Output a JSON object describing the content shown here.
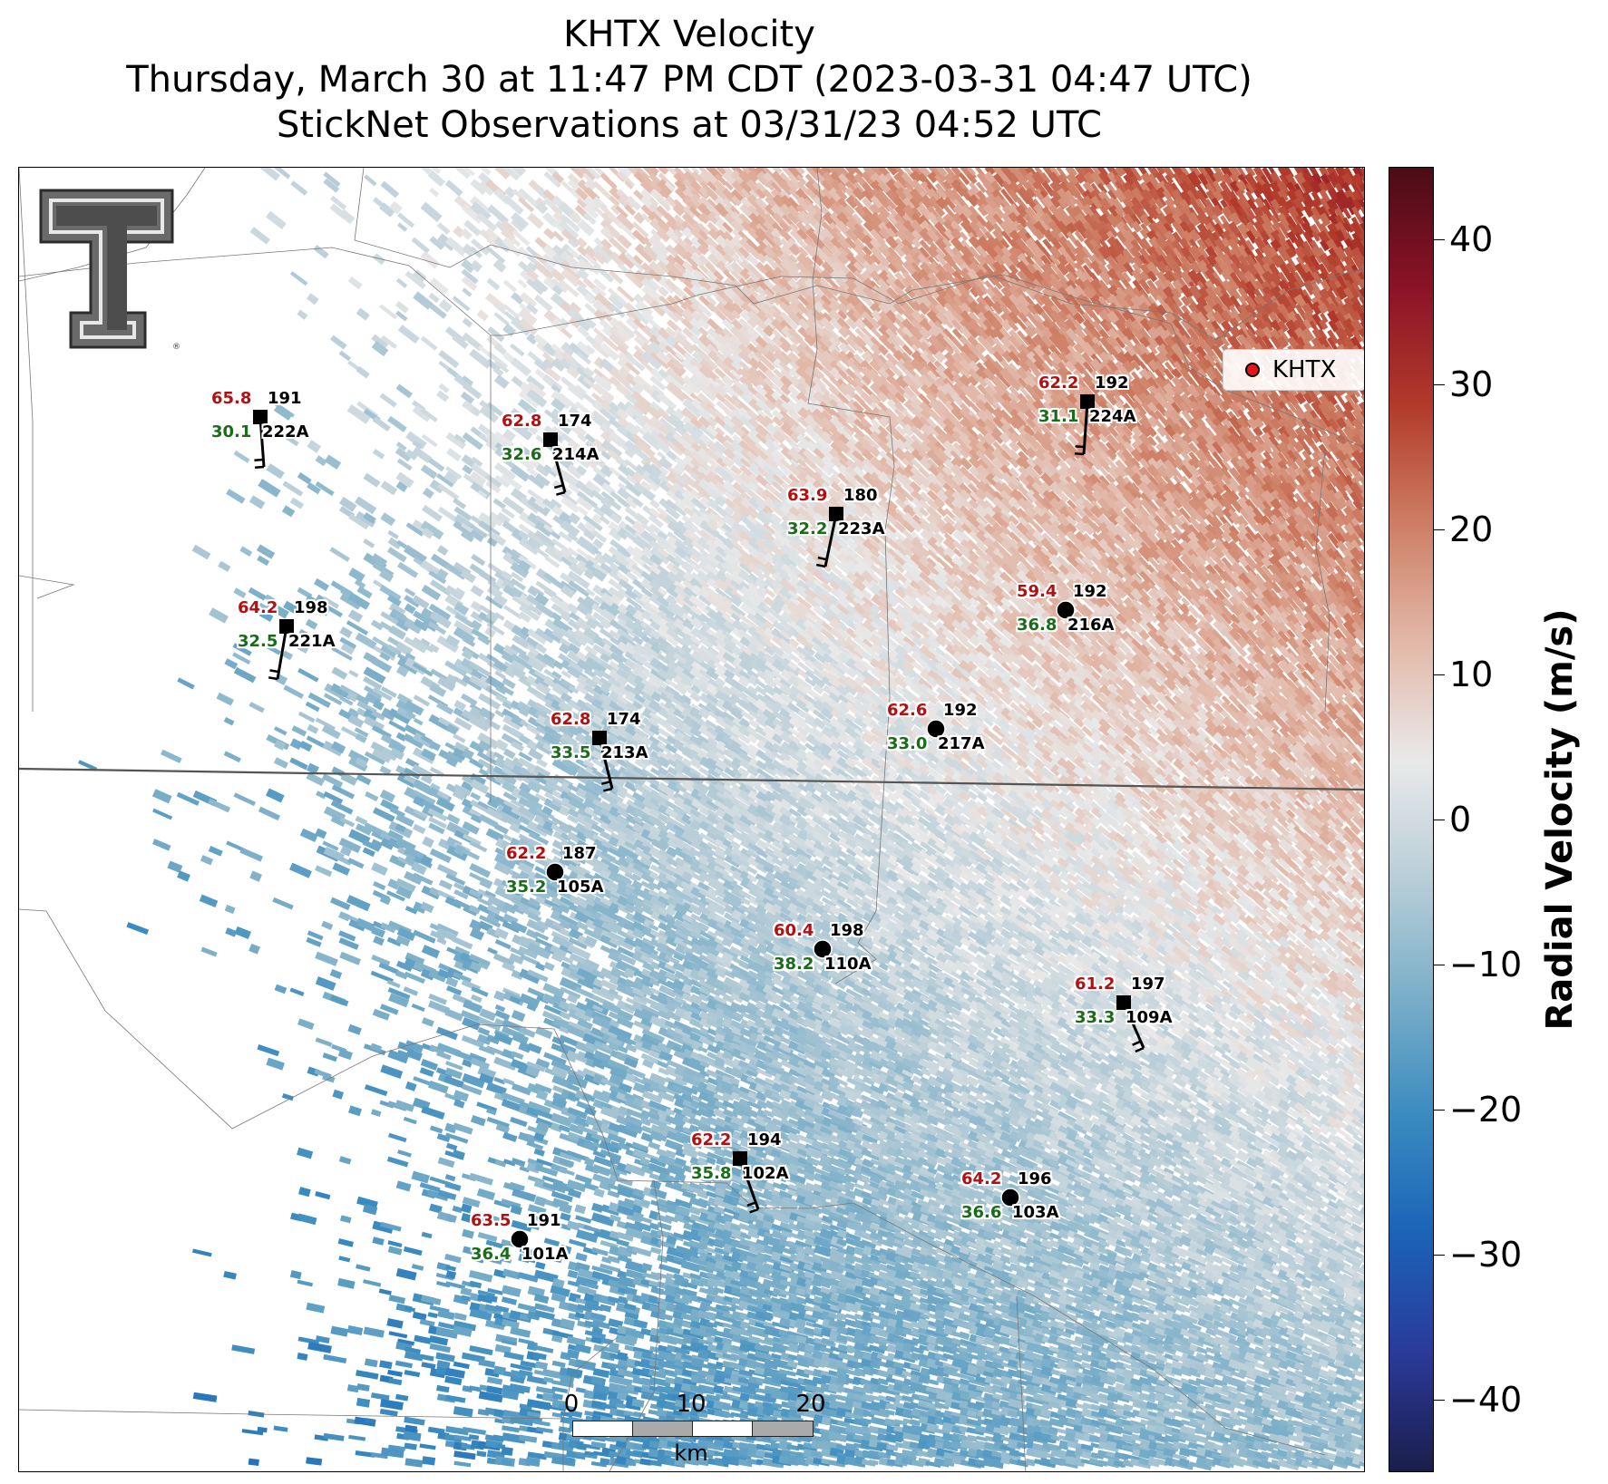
{
  "title": {
    "line1": "KHTX Velocity",
    "line2": "Thursday, March 30 at 11:47 PM CDT (2023-03-31 04:47 UTC)",
    "line3": "StickNet Observations at 03/31/23 04:52 UTC"
  },
  "colorbar": {
    "title": "Radial Velocity (m/s)",
    "vmin": -45,
    "vmax": 45,
    "ticks": [
      40,
      30,
      20,
      10,
      0,
      -10,
      -20,
      -30,
      -40
    ],
    "tick_labels": [
      "40",
      "30",
      "20",
      "10",
      "0",
      "−10",
      "−20",
      "−30",
      "−40"
    ],
    "colors": [
      "#1b1e4b",
      "#2a3a9a",
      "#1b63b8",
      "#3a8bc0",
      "#7aaec8",
      "#b9ced8",
      "#e9e9e9",
      "#e2b8a8",
      "#cd7e64",
      "#b23a2a",
      "#8b1227",
      "#4a0d16"
    ]
  },
  "legend": {
    "label": "KHTX",
    "marker_color": "#e8141b"
  },
  "scale_bar": {
    "labels": [
      "0",
      "10",
      "20"
    ],
    "unit": "km"
  },
  "stations": [
    {
      "id": "222A",
      "gust": "65.8",
      "dir": "191",
      "wind": "30.1",
      "marker": "square"
    },
    {
      "id": "214A",
      "gust": "62.8",
      "dir": "174",
      "wind": "32.6",
      "marker": "square"
    },
    {
      "id": "223A",
      "gust": "63.9",
      "dir": "180",
      "wind": "32.2",
      "marker": "square"
    },
    {
      "id": "224A",
      "gust": "62.2",
      "dir": "192",
      "wind": "31.1",
      "marker": "square"
    },
    {
      "id": "221A",
      "gust": "64.2",
      "dir": "198",
      "wind": "32.5",
      "marker": "square"
    },
    {
      "id": "216A",
      "gust": "59.4",
      "dir": "192",
      "wind": "36.8",
      "marker": "circle"
    },
    {
      "id": "213A",
      "gust": "62.8",
      "dir": "174",
      "wind": "33.5",
      "marker": "square"
    },
    {
      "id": "217A",
      "gust": "62.6",
      "dir": "192",
      "wind": "33.0",
      "marker": "circle"
    },
    {
      "id": "105A",
      "gust": "62.2",
      "dir": "187",
      "wind": "35.2",
      "marker": "circle"
    },
    {
      "id": "110A",
      "gust": "60.4",
      "dir": "198",
      "wind": "38.2",
      "marker": "circle"
    },
    {
      "id": "109A",
      "gust": "61.2",
      "dir": "197",
      "wind": "33.3",
      "marker": "square"
    },
    {
      "id": "102A",
      "gust": "62.2",
      "dir": "194",
      "wind": "35.8",
      "marker": "square"
    },
    {
      "id": "103A",
      "gust": "64.2",
      "dir": "196",
      "wind": "36.6",
      "marker": "circle"
    },
    {
      "id": "101A",
      "gust": "63.5",
      "dir": "191",
      "wind": "36.4",
      "marker": "circle"
    }
  ]
}
